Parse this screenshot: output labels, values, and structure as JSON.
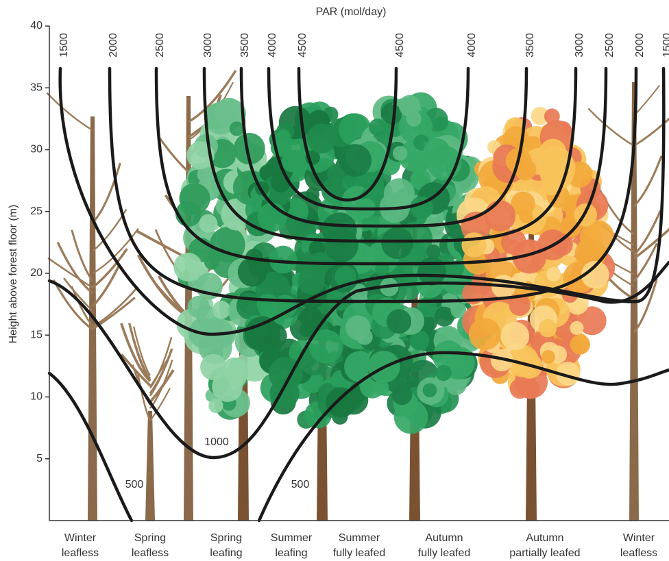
{
  "chart_data": {
    "type": "contour",
    "title": "PAR (mol/day)",
    "y_label": "Height above forest floor (m)",
    "ylim": [
      0,
      40
    ],
    "yticks": [
      5,
      10,
      15,
      20,
      25,
      30,
      35,
      40
    ],
    "categories": [
      [
        "Winter",
        "leafless"
      ],
      [
        "Spring",
        "leafless"
      ],
      [
        "Spring",
        "leafing"
      ],
      [
        "Summer",
        "leafing"
      ],
      [
        "Summer",
        "fully leafed"
      ],
      [
        "Autumn",
        "fully leafed"
      ],
      [
        "Autumn",
        "partially leafed"
      ],
      [
        "Winter",
        "leafless"
      ]
    ],
    "contour_labels_top": [
      1500,
      2000,
      2500,
      3000,
      3500,
      4000,
      4500,
      4500,
      4000,
      3500,
      3000,
      2500,
      2000,
      1500
    ],
    "contour_labels_inner": [
      1000,
      500,
      500
    ],
    "line_color": "#1a1a1a"
  }
}
